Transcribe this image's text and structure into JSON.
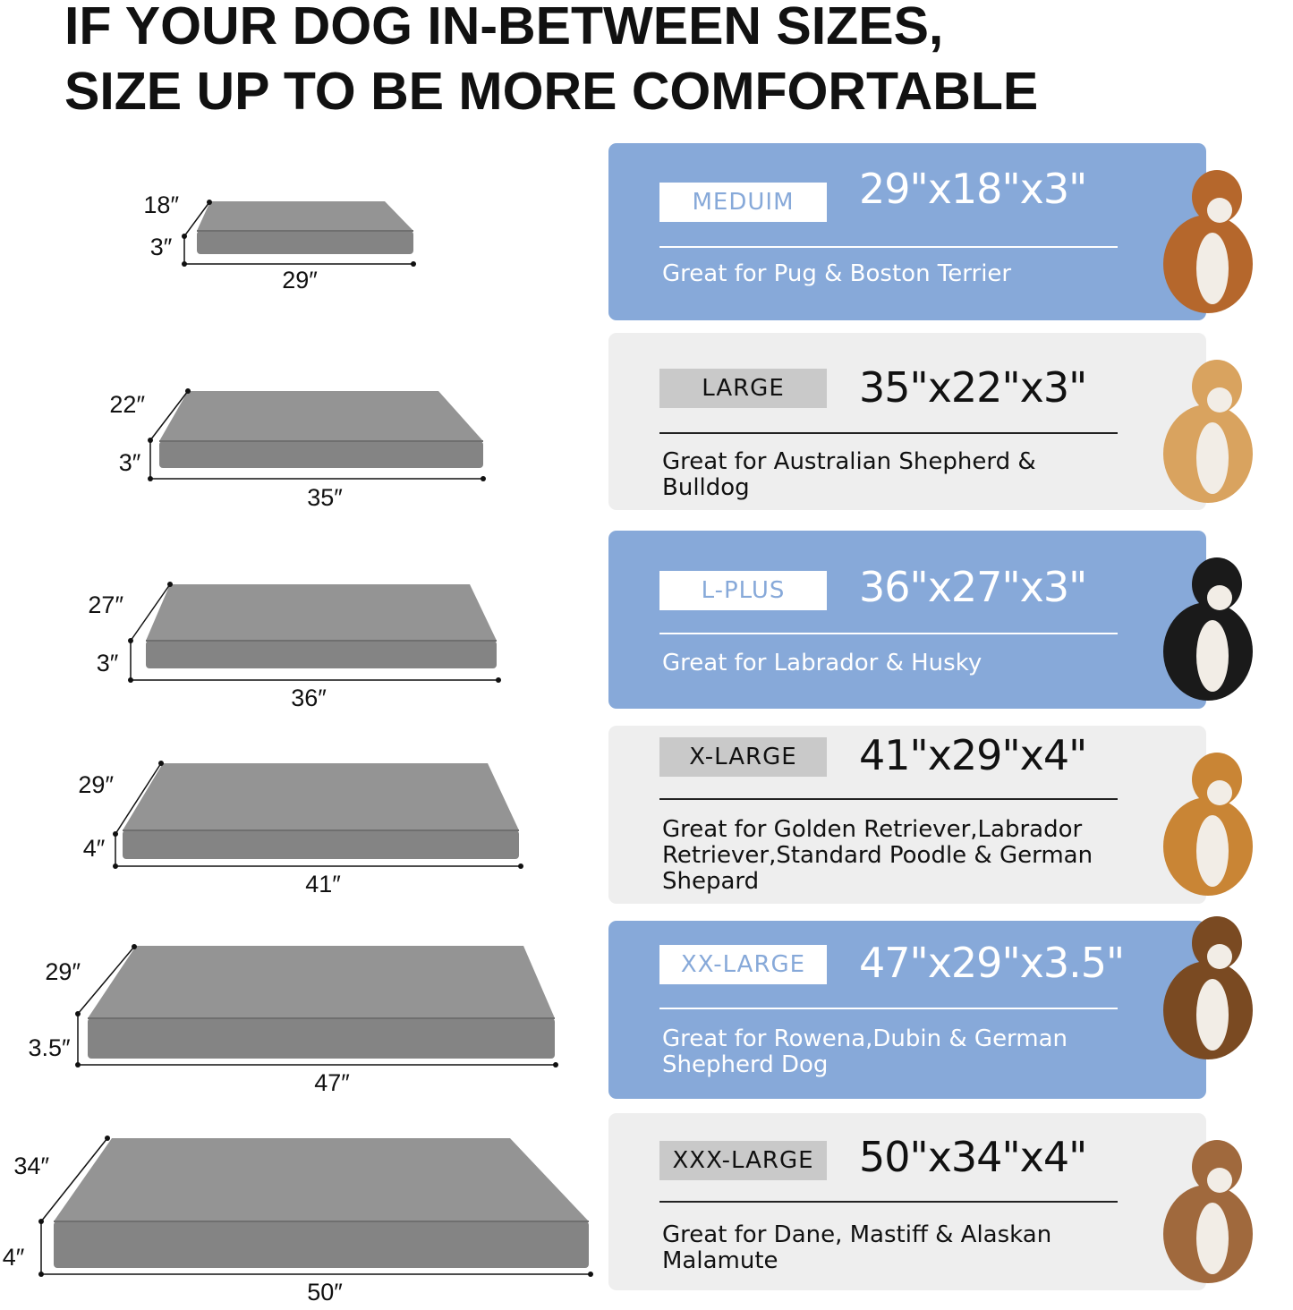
{
  "title": {
    "line1": "IF YOUR DOG IN-BETWEEN SIZES,",
    "line2": "SIZE UP TO BE MORE COMFORTABLE"
  },
  "colors": {
    "blue_card": "#87a9d9",
    "gray_card": "#eeeeee",
    "bed": "#8a8a8a"
  },
  "sizes": [
    {
      "name": "MEDUIM",
      "dimensions": "29\"x18\"x3\"",
      "description": "Great for Pug & Boston Terrier",
      "bed": {
        "length": "29″",
        "width": "18″",
        "height": "3″"
      },
      "style": "blue",
      "dog_icon": "bulldog-image"
    },
    {
      "name": "LARGE",
      "dimensions": "35\"x22\"x3\"",
      "description": "Great for Australian Shepherd & Bulldog",
      "bed": {
        "length": "35″",
        "width": "22″",
        "height": "3″"
      },
      "style": "gray",
      "dog_icon": "shiba-image"
    },
    {
      "name": "L-PLUS",
      "dimensions": "36\"x27\"x3\"",
      "description": "Great for Labrador & Husky",
      "bed": {
        "length": "36″",
        "width": "27″",
        "height": "3″"
      },
      "style": "blue",
      "dog_icon": "border-collie-image"
    },
    {
      "name": "X-LARGE",
      "dimensions": "41\"x29\"x4\"",
      "description": "Great for Golden Retriever,Labrador Retriever,Standard Poodle & German Shepard",
      "bed": {
        "length": "41″",
        "width": "29″",
        "height": "4″"
      },
      "style": "gray",
      "dog_icon": "golden-retriever-image"
    },
    {
      "name": "XX-LARGE",
      "dimensions": "47\"x29\"x3.5\"",
      "description": "Great for Rowena,Dubin & German Shepherd Dog",
      "bed": {
        "length": "47″",
        "width": "29″",
        "height": "3.5″"
      },
      "style": "blue",
      "dog_icon": "german-shepherd-image"
    },
    {
      "name": "XXX-LARGE",
      "dimensions": "50\"x34\"x4\"",
      "description": "Great for Dane, Mastiff & Alaskan Malamute",
      "bed": {
        "length": "50″",
        "width": "34″",
        "height": "4″"
      },
      "style": "gray",
      "dog_icon": "mastiff-image"
    }
  ]
}
